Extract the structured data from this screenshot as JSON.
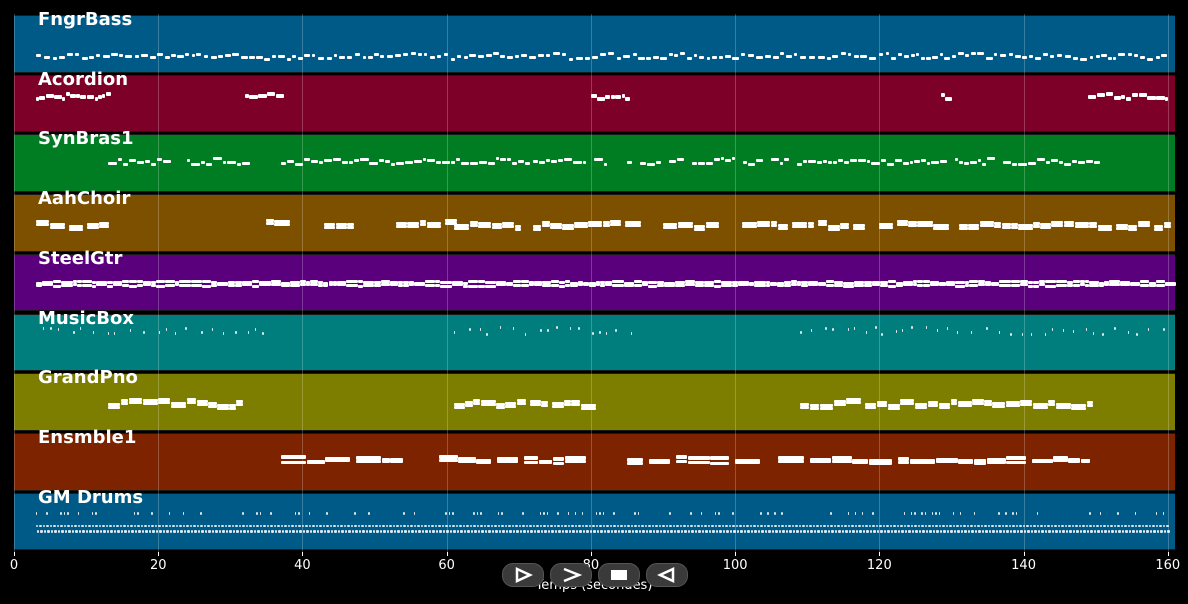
{
  "tracks": [
    {
      "name": "FngrBass",
      "color": "#005a87",
      "style": "bass"
    },
    {
      "name": "Acordion",
      "color": "#7d0029",
      "style": "phrases"
    },
    {
      "name": "SynBras1",
      "color": "#007d23",
      "style": "melody"
    },
    {
      "name": "AahChoir",
      "color": "#7d5000",
      "style": "chords"
    },
    {
      "name": "SteelGtr",
      "color": "#5a007d",
      "style": "strum"
    },
    {
      "name": "MusicBox",
      "color": "#007d7d",
      "style": "dots"
    },
    {
      "name": "GrandPno",
      "color": "#7d7d00",
      "style": "chords"
    },
    {
      "name": "Ensmble1",
      "color": "#7d2300",
      "style": "ensemble"
    },
    {
      "name": "GM Drums",
      "color": "#005a87",
      "style": "drums"
    }
  ],
  "x_axis": {
    "label": "Temps (secondes)",
    "min": 0,
    "max": 161,
    "ticks": [
      "0",
      "20",
      "40",
      "60",
      "80",
      "100",
      "120",
      "140",
      "160"
    ]
  },
  "controls": [
    {
      "name": "play-icon",
      "label": "play"
    },
    {
      "name": "fast-forward-icon",
      "label": "fast forward"
    },
    {
      "name": "stop-icon",
      "label": "stop"
    },
    {
      "name": "rewind-icon",
      "label": "rewind"
    }
  ],
  "chart_data": {
    "type": "piano-roll",
    "xlabel": "Temps (secondes)",
    "xlim": [
      0,
      161
    ],
    "grid": true,
    "segments": {
      "FngrBass": [
        [
          3,
          160
        ]
      ],
      "Acordion": [
        [
          3,
          13
        ],
        [
          32,
          37
        ],
        [
          80,
          85
        ],
        [
          128.5,
          129.5
        ],
        [
          149,
          160
        ]
      ],
      "SynBras1": [
        [
          13,
          21
        ],
        [
          24,
          32
        ],
        [
          37,
          49
        ],
        [
          48,
          72
        ],
        [
          72,
          82
        ],
        [
          85,
          150
        ]
      ],
      "AahChoir": [
        [
          3,
          13
        ],
        [
          35,
          38
        ],
        [
          43,
          47
        ],
        [
          53,
          60
        ],
        [
          61,
          70
        ],
        [
          72,
          86
        ],
        [
          90,
          97
        ],
        [
          101,
          118
        ],
        [
          120,
          128
        ],
        [
          131,
          160
        ]
      ],
      "SteelGtr": [
        [
          3,
          160
        ]
      ],
      "MusicBox": [
        [
          4,
          36
        ],
        [
          61,
          86
        ],
        [
          109,
          160
        ]
      ],
      "GrandPno": [
        [
          13,
          32
        ],
        [
          61,
          80
        ],
        [
          109,
          149
        ]
      ],
      "Ensmble1": [
        [
          37,
          53
        ],
        [
          59,
          79
        ],
        [
          85,
          101
        ],
        [
          106,
          149
        ]
      ],
      "GM Drums": [
        [
          3,
          160
        ]
      ]
    }
  }
}
